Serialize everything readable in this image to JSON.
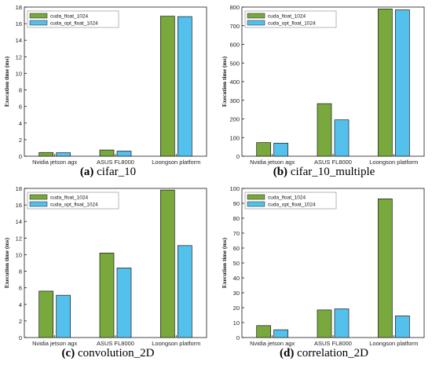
{
  "colors": {
    "green": "#79A83C",
    "blue": "#54C0EC",
    "stroke": "#1a1a1a"
  },
  "chart_data": [
    {
      "type": "bar",
      "caption_label": "(a)",
      "caption_text": "cifar_10",
      "ylabel": "Execution time (ms)",
      "ylim": [
        0,
        18
      ],
      "yticks": [
        0,
        2,
        4,
        6,
        8,
        10,
        12,
        14,
        16,
        18
      ],
      "categories": [
        "Nvidia jetson agx",
        "ASUS FL8000",
        "Loongson platform"
      ],
      "series": [
        {
          "name": "cuda_float_1024",
          "values": [
            0.45,
            0.75,
            16.9
          ]
        },
        {
          "name": "cuda_opt_float_1024",
          "values": [
            0.42,
            0.62,
            16.85
          ]
        }
      ],
      "legend": "top-left"
    },
    {
      "type": "bar",
      "caption_label": "(b)",
      "caption_text": "cifar_10_multiple",
      "ylabel": "Execution time (ms)",
      "ylim": [
        0,
        800
      ],
      "yticks": [
        0,
        100,
        200,
        300,
        400,
        500,
        600,
        700,
        800
      ],
      "categories": [
        "Nvidia jetson agx",
        "ASUS FL8000",
        "Loongson platform"
      ],
      "series": [
        {
          "name": "cuda_float_1024",
          "values": [
            73,
            282,
            790
          ]
        },
        {
          "name": "cuda_opt_float_1024",
          "values": [
            70,
            195,
            785
          ]
        }
      ],
      "legend": "top-left"
    },
    {
      "type": "bar",
      "caption_label": "(c)",
      "caption_text": "convolution_2D",
      "ylabel": "Execution time (ms)",
      "ylim": [
        0,
        18
      ],
      "yticks": [
        0,
        2,
        4,
        6,
        8,
        10,
        12,
        14,
        16,
        18
      ],
      "categories": [
        "Nvidia jetson agx",
        "ASUS FL8000",
        "Loongson platform"
      ],
      "series": [
        {
          "name": "cuda_float_1024",
          "values": [
            5.6,
            10.2,
            17.8
          ]
        },
        {
          "name": "cuda_opt_float_1024",
          "values": [
            5.1,
            8.4,
            11.1
          ]
        }
      ],
      "legend": "top-left"
    },
    {
      "type": "bar",
      "caption_label": "(d)",
      "caption_text": "correlation_2D",
      "ylabel": "Execution time (ms)",
      "ylim": [
        0,
        100
      ],
      "yticks": [
        0,
        10,
        20,
        30,
        40,
        50,
        60,
        70,
        80,
        90,
        100
      ],
      "categories": [
        "Nvidia jetson agx",
        "ASUS FL8000",
        "Loongson platform"
      ],
      "series": [
        {
          "name": "cuda_float_1024",
          "values": [
            8,
            18.5,
            93
          ]
        },
        {
          "name": "cuda_opt_float_1024",
          "values": [
            5.2,
            19.2,
            14.5
          ]
        }
      ],
      "legend": "top-left"
    }
  ]
}
